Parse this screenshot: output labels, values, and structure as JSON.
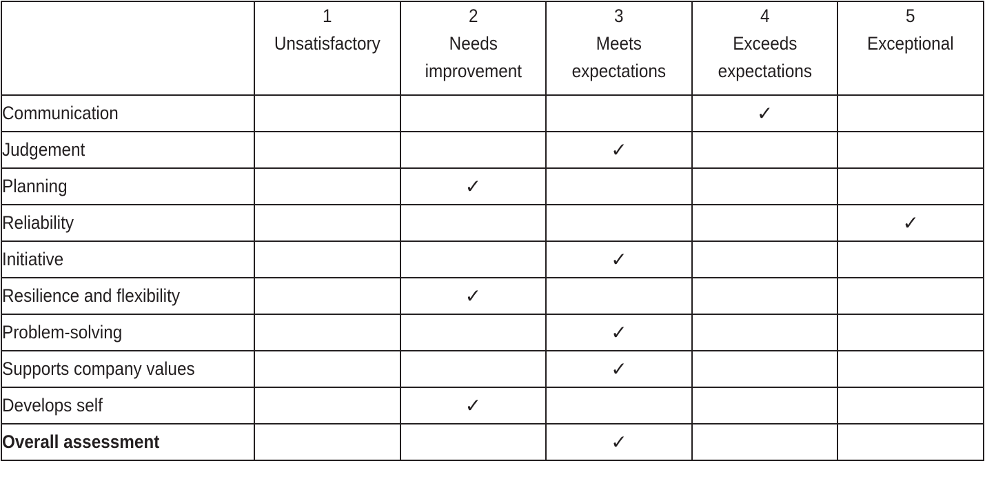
{
  "table": {
    "header": {
      "corner": "",
      "columns": [
        {
          "number": "1",
          "label": "Unsatisfactory"
        },
        {
          "number": "2",
          "label": "Needs improvement"
        },
        {
          "number": "3",
          "label": "Meets expectations"
        },
        {
          "number": "4",
          "label": "Exceeds expectations"
        },
        {
          "number": "5",
          "label": "Exceptional"
        }
      ]
    },
    "check_symbol": "✓",
    "rows": [
      {
        "criterion": "Communication",
        "rating": 4,
        "bold": false
      },
      {
        "criterion": "Judgement",
        "rating": 3,
        "bold": false
      },
      {
        "criterion": "Planning",
        "rating": 2,
        "bold": false
      },
      {
        "criterion": "Reliability",
        "rating": 5,
        "bold": false
      },
      {
        "criterion": "Initiative",
        "rating": 3,
        "bold": false
      },
      {
        "criterion": "Resilience and flexibility",
        "rating": 2,
        "bold": false
      },
      {
        "criterion": "Problem-solving",
        "rating": 3,
        "bold": false
      },
      {
        "criterion": "Supports company values",
        "rating": 3,
        "bold": false
      },
      {
        "criterion": "Develops self",
        "rating": 2,
        "bold": false
      },
      {
        "criterion": "Overall assessment",
        "rating": 3,
        "bold": true
      }
    ]
  }
}
